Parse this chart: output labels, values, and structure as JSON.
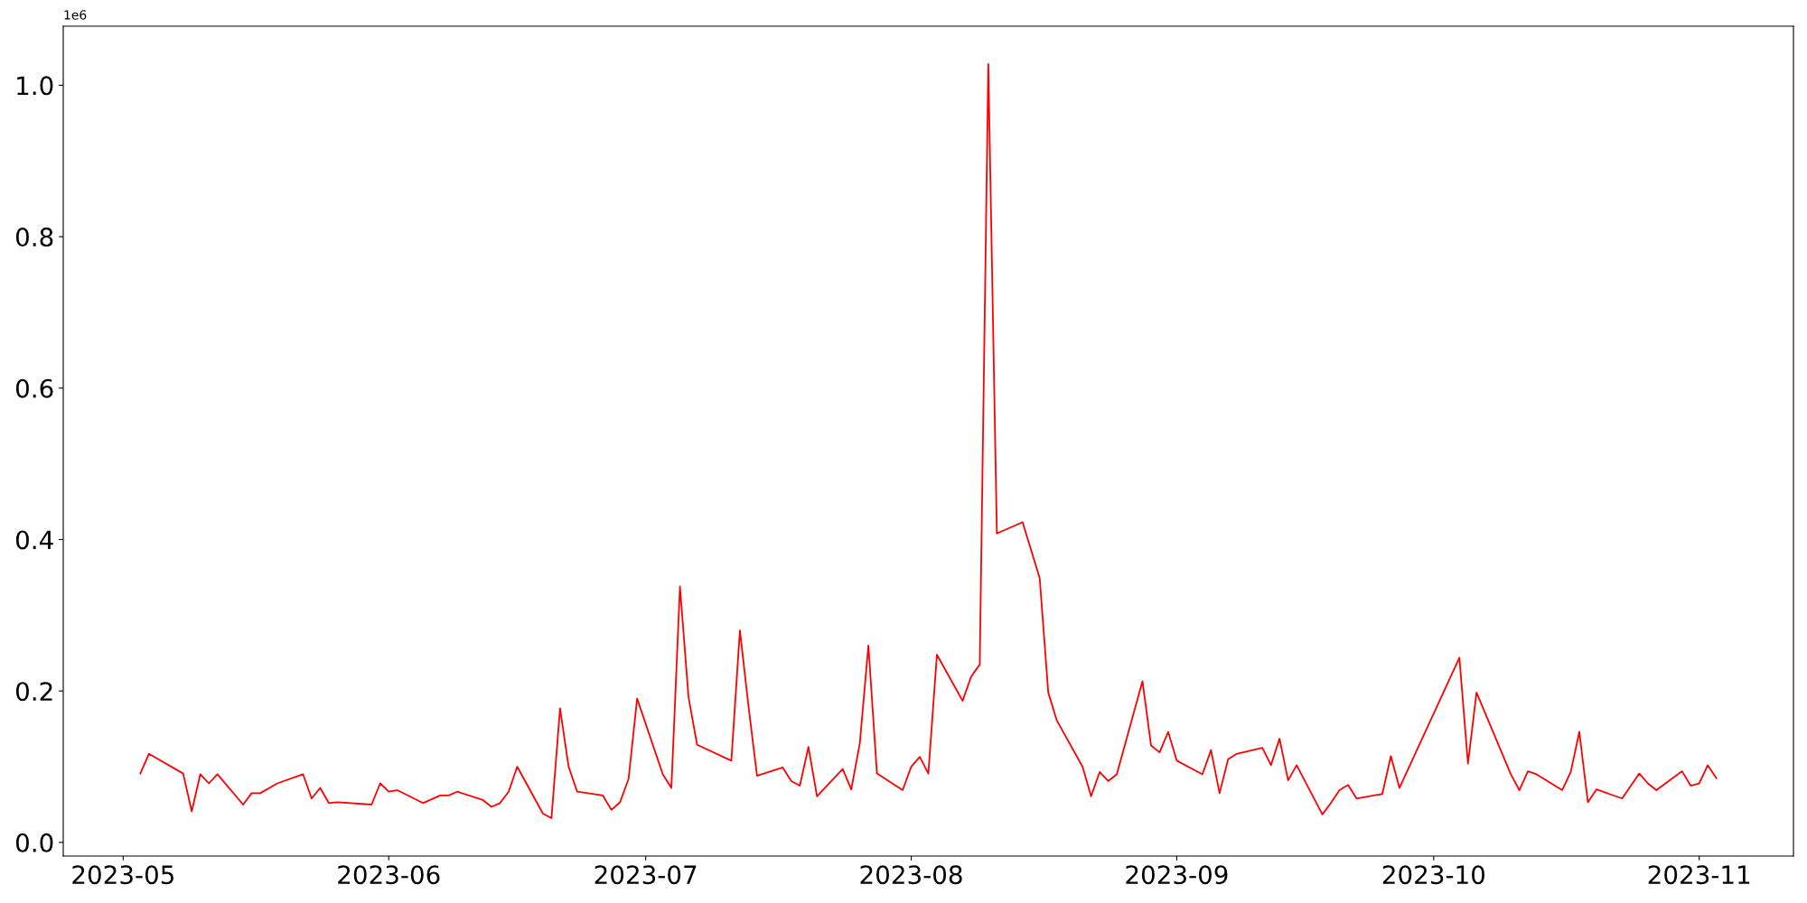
{
  "chart_data": {
    "type": "line",
    "x": [
      "2023-05-03",
      "2023-05-04",
      "2023-05-08",
      "2023-05-09",
      "2023-05-10",
      "2023-05-11",
      "2023-05-12",
      "2023-05-15",
      "2023-05-16",
      "2023-05-17",
      "2023-05-19",
      "2023-05-22",
      "2023-05-23",
      "2023-05-24",
      "2023-05-25",
      "2023-05-26",
      "2023-05-30",
      "2023-05-31",
      "2023-06-01",
      "2023-06-02",
      "2023-06-05",
      "2023-06-07",
      "2023-06-08",
      "2023-06-09",
      "2023-06-12",
      "2023-06-13",
      "2023-06-14",
      "2023-06-15",
      "2023-06-16",
      "2023-06-19",
      "2023-06-20",
      "2023-06-21",
      "2023-06-22",
      "2023-06-23",
      "2023-06-26",
      "2023-06-27",
      "2023-06-28",
      "2023-06-29",
      "2023-06-30",
      "2023-07-03",
      "2023-07-04",
      "2023-07-05",
      "2023-07-06",
      "2023-07-07",
      "2023-07-11",
      "2023-07-12",
      "2023-07-13",
      "2023-07-14",
      "2023-07-17",
      "2023-07-18",
      "2023-07-19",
      "2023-07-20",
      "2023-07-21",
      "2023-07-24",
      "2023-07-25",
      "2023-07-26",
      "2023-07-27",
      "2023-07-28",
      "2023-07-31",
      "2023-08-01",
      "2023-08-02",
      "2023-08-03",
      "2023-08-04",
      "2023-08-07",
      "2023-08-08",
      "2023-08-09",
      "2023-08-10",
      "2023-08-11",
      "2023-08-14",
      "2023-08-16",
      "2023-08-17",
      "2023-08-18",
      "2023-08-21",
      "2023-08-22",
      "2023-08-23",
      "2023-08-24",
      "2023-08-25",
      "2023-08-28",
      "2023-08-29",
      "2023-08-30",
      "2023-08-31",
      "2023-09-01",
      "2023-09-04",
      "2023-09-05",
      "2023-09-06",
      "2023-09-07",
      "2023-09-08",
      "2023-09-11",
      "2023-09-12",
      "2023-09-13",
      "2023-09-14",
      "2023-09-15",
      "2023-09-18",
      "2023-09-19",
      "2023-09-20",
      "2023-09-21",
      "2023-09-22",
      "2023-09-25",
      "2023-09-26",
      "2023-09-27",
      "2023-10-04",
      "2023-10-05",
      "2023-10-06",
      "2023-10-10",
      "2023-10-11",
      "2023-10-12",
      "2023-10-13",
      "2023-10-16",
      "2023-10-17",
      "2023-10-18",
      "2023-10-19",
      "2023-10-20",
      "2023-10-23",
      "2023-10-25",
      "2023-10-26",
      "2023-10-27",
      "2023-10-30",
      "2023-10-31",
      "2023-11-01",
      "2023-11-02",
      "2023-11-03"
    ],
    "series": [
      {
        "color": "#ff0000",
        "values": [
          0.091,
          0.117,
          0.091,
          0.041,
          0.09,
          0.078,
          0.09,
          0.05,
          0.065,
          0.065,
          0.078,
          0.09,
          0.058,
          0.072,
          0.052,
          0.053,
          0.05,
          0.078,
          0.067,
          0.069,
          0.052,
          0.062,
          0.062,
          0.067,
          0.056,
          0.047,
          0.052,
          0.067,
          0.1,
          0.038,
          0.032,
          0.177,
          0.1,
          0.067,
          0.062,
          0.043,
          0.053,
          0.084,
          0.19,
          0.09,
          0.072,
          0.338,
          0.192,
          0.129,
          0.108,
          0.28,
          0.18,
          0.088,
          0.099,
          0.081,
          0.075,
          0.126,
          0.061,
          0.097,
          0.07,
          0.131,
          0.26,
          0.091,
          0.069,
          0.1,
          0.113,
          0.091,
          0.248,
          0.187,
          0.219,
          0.235,
          1.028,
          0.408,
          0.423,
          0.349,
          0.198,
          0.161,
          0.1,
          0.061,
          0.093,
          0.081,
          0.09,
          0.213,
          0.128,
          0.119,
          0.146,
          0.108,
          0.09,
          0.122,
          0.065,
          0.11,
          0.117,
          0.125,
          0.102,
          0.137,
          0.082,
          0.102,
          0.037,
          0.052,
          0.069,
          0.076,
          0.058,
          0.064,
          0.114,
          0.072,
          0.244,
          0.104,
          0.198,
          0.09,
          0.069,
          0.094,
          0.09,
          0.069,
          0.093,
          0.146,
          0.053,
          0.07,
          0.058,
          0.091,
          0.078,
          0.069,
          0.094,
          0.075,
          0.078,
          0.102,
          0.085
        ]
      }
    ],
    "xlim": [
      "2023-04-24",
      "2023-11-12"
    ],
    "xticks": [
      {
        "value": "2023-05-01",
        "label": "2023-05"
      },
      {
        "value": "2023-06-01",
        "label": "2023-06"
      },
      {
        "value": "2023-07-01",
        "label": "2023-07"
      },
      {
        "value": "2023-08-01",
        "label": "2023-08"
      },
      {
        "value": "2023-09-01",
        "label": "2023-09"
      },
      {
        "value": "2023-10-01",
        "label": "2023-10"
      },
      {
        "value": "2023-11-01",
        "label": "2023-11"
      }
    ],
    "ylim": [
      -0.018,
      1.078
    ],
    "yticks": [
      {
        "value": 0,
        "label": "0.0"
      },
      0.2,
      0.4,
      0.6,
      0.8,
      {
        "value": 1,
        "label": "1.0"
      }
    ],
    "annotations": [
      "1e6"
    ],
    "grid": false,
    "marker": "none",
    "line_style": "solid"
  }
}
